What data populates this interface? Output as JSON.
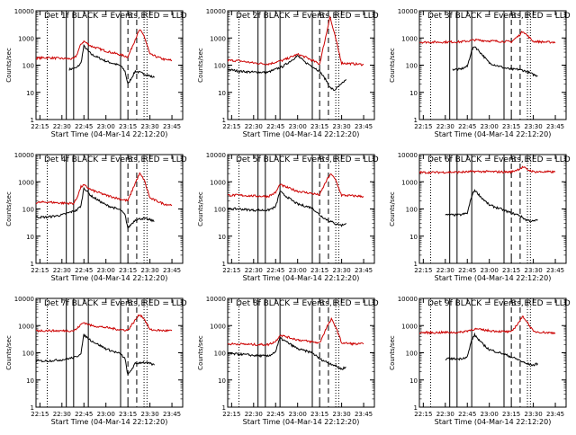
{
  "figure": {
    "panel_title_suffix": "BLACK = Events, RED = LLD",
    "xlabel": "Start Time (04-Mar-14 22:12:20)",
    "ylabel": "Counts/sec",
    "time_ticks": [
      "22:15",
      "22:30",
      "22:45",
      "23:00",
      "23:15",
      "23:30",
      "23:45"
    ],
    "count_ticks": [
      "1",
      "10",
      "100",
      "1000",
      "10000"
    ],
    "marker_labels": [
      "S",
      "E"
    ],
    "colors": {
      "events": "#000000",
      "lld": "#cc0000",
      "axes": "#000000",
      "background": "#ffffff"
    }
  },
  "chart_data": [
    {
      "title": "Det 1f",
      "type": "line",
      "ylim": [
        1,
        10000
      ],
      "y_scale": "log",
      "series": [
        {
          "name": "BLACK = Events",
          "x": [
            "22:35",
            "22:40",
            "22:43",
            "22:45",
            "22:50",
            "23:00",
            "23:10",
            "23:13",
            "23:15",
            "23:20",
            "23:25",
            "23:30",
            "23:33"
          ],
          "y": [
            70,
            80,
            120,
            500,
            250,
            140,
            95,
            60,
            20,
            60,
            50,
            40,
            35
          ]
        },
        {
          "name": "RED = LLD",
          "x": [
            "22:12",
            "22:20",
            "22:30",
            "22:38",
            "22:40",
            "22:43",
            "22:45",
            "22:50",
            "23:00",
            "23:10",
            "23:15",
            "23:20",
            "23:23",
            "23:26",
            "23:30",
            "23:40",
            "23:45"
          ],
          "y": [
            180,
            190,
            175,
            170,
            230,
            600,
            750,
            500,
            330,
            240,
            200,
            900,
            2000,
            1200,
            250,
            160,
            150
          ]
        }
      ]
    },
    {
      "title": "Det 2f",
      "type": "line",
      "ylim": [
        1,
        10000
      ],
      "y_scale": "log",
      "series": [
        {
          "name": "BLACK = Events",
          "x": [
            "22:12",
            "22:20",
            "22:30",
            "22:40",
            "22:50",
            "23:00",
            "23:05",
            "23:10",
            "23:15",
            "23:20",
            "23:22",
            "23:25",
            "23:30",
            "23:33"
          ],
          "y": [
            70,
            60,
            55,
            55,
            90,
            220,
            130,
            90,
            60,
            25,
            15,
            12,
            20,
            30
          ]
        },
        {
          "name": "RED = LLD",
          "x": [
            "22:12",
            "22:20",
            "22:30",
            "22:40",
            "22:50",
            "23:00",
            "23:05",
            "23:10",
            "23:15",
            "23:20",
            "23:22",
            "23:25",
            "23:30",
            "23:40",
            "23:45"
          ],
          "y": [
            150,
            145,
            120,
            110,
            150,
            250,
            200,
            150,
            110,
            1800,
            6000,
            1500,
            120,
            110,
            105
          ]
        }
      ]
    },
    {
      "title": "Det 3f",
      "type": "line",
      "ylim": [
        1,
        10000
      ],
      "y_scale": "log",
      "series": [
        {
          "name": "BLACK = Events",
          "x": [
            "22:35",
            "22:40",
            "22:45",
            "22:48",
            "22:50",
            "22:55",
            "23:00",
            "23:10",
            "23:15",
            "23:20",
            "23:25",
            "23:30",
            "23:33"
          ],
          "y": [
            70,
            70,
            90,
            350,
            500,
            250,
            120,
            80,
            70,
            70,
            60,
            45,
            40
          ]
        },
        {
          "name": "RED = LLD",
          "x": [
            "22:12",
            "22:20",
            "22:30",
            "22:40",
            "22:48",
            "22:50",
            "23:00",
            "23:10",
            "23:15",
            "23:20",
            "23:23",
            "23:26",
            "23:30",
            "23:40",
            "23:45"
          ],
          "y": [
            700,
            700,
            710,
            720,
            800,
            850,
            780,
            740,
            730,
            1200,
            1800,
            1200,
            750,
            700,
            700
          ]
        }
      ]
    },
    {
      "title": "Det 4f",
      "type": "line",
      "ylim": [
        1,
        10000
      ],
      "y_scale": "log",
      "series": [
        {
          "name": "BLACK = Events",
          "x": [
            "22:12",
            "22:20",
            "22:30",
            "22:40",
            "22:43",
            "22:45",
            "22:50",
            "23:00",
            "23:10",
            "23:13",
            "23:15",
            "23:20",
            "23:25",
            "23:30",
            "23:33"
          ],
          "y": [
            50,
            50,
            60,
            90,
            130,
            600,
            300,
            140,
            90,
            60,
            20,
            40,
            45,
            40,
            35
          ]
        },
        {
          "name": "RED = LLD",
          "x": [
            "22:12",
            "22:20",
            "22:30",
            "22:38",
            "22:40",
            "22:43",
            "22:45",
            "22:50",
            "23:00",
            "23:10",
            "23:15",
            "23:20",
            "23:23",
            "23:26",
            "23:30",
            "23:40",
            "23:45"
          ],
          "y": [
            170,
            180,
            165,
            160,
            240,
            650,
            750,
            500,
            320,
            230,
            200,
            900,
            2000,
            1200,
            250,
            150,
            140
          ]
        }
      ]
    },
    {
      "title": "Det 5f",
      "type": "line",
      "ylim": [
        1,
        10000
      ],
      "y_scale": "log",
      "series": [
        {
          "name": "BLACK = Events",
          "x": [
            "22:12",
            "22:20",
            "22:30",
            "22:40",
            "22:45",
            "22:48",
            "22:50",
            "23:00",
            "23:10",
            "23:15",
            "23:20",
            "23:25",
            "23:30",
            "23:33"
          ],
          "y": [
            100,
            100,
            90,
            90,
            120,
            450,
            350,
            150,
            110,
            60,
            40,
            30,
            25,
            30
          ]
        },
        {
          "name": "RED = LLD",
          "x": [
            "22:12",
            "22:20",
            "22:30",
            "22:40",
            "22:45",
            "22:48",
            "22:50",
            "23:00",
            "23:10",
            "23:15",
            "23:20",
            "23:23",
            "23:26",
            "23:30",
            "23:40",
            "23:45"
          ],
          "y": [
            320,
            320,
            300,
            290,
            400,
            800,
            700,
            450,
            370,
            330,
            1200,
            2000,
            1100,
            320,
            300,
            290
          ]
        }
      ]
    },
    {
      "title": "Det 6f",
      "type": "line",
      "ylim": [
        1,
        10000
      ],
      "y_scale": "log",
      "series": [
        {
          "name": "BLACK = Events",
          "x": [
            "22:30",
            "22:40",
            "22:45",
            "22:48",
            "22:50",
            "22:55",
            "23:00",
            "23:10",
            "23:15",
            "23:20",
            "23:25",
            "23:30",
            "23:33"
          ],
          "y": [
            60,
            60,
            70,
            300,
            500,
            250,
            140,
            90,
            70,
            60,
            40,
            35,
            40
          ]
        },
        {
          "name": "RED = LLD",
          "x": [
            "22:12",
            "22:20",
            "22:30",
            "22:40",
            "22:48",
            "22:50",
            "23:00",
            "23:10",
            "23:15",
            "23:20",
            "23:23",
            "23:26",
            "23:30",
            "23:40",
            "23:45"
          ],
          "y": [
            2200,
            2200,
            2250,
            2250,
            2350,
            2400,
            2350,
            2300,
            2300,
            2900,
            3500,
            2800,
            2350,
            2300,
            2300
          ]
        }
      ]
    },
    {
      "title": "Det 7f",
      "type": "line",
      "ylim": [
        1,
        10000
      ],
      "y_scale": "log",
      "series": [
        {
          "name": "BLACK = Events",
          "x": [
            "22:12",
            "22:20",
            "22:30",
            "22:40",
            "22:43",
            "22:45",
            "22:50",
            "23:00",
            "23:10",
            "23:13",
            "23:15",
            "23:20",
            "23:25",
            "23:30",
            "23:33"
          ],
          "y": [
            50,
            50,
            55,
            70,
            100,
            450,
            280,
            140,
            90,
            60,
            15,
            40,
            45,
            40,
            35
          ]
        },
        {
          "name": "RED = LLD",
          "x": [
            "22:12",
            "22:20",
            "22:30",
            "22:38",
            "22:40",
            "22:43",
            "22:45",
            "22:50",
            "23:00",
            "23:10",
            "23:15",
            "23:20",
            "23:23",
            "23:26",
            "23:30",
            "23:40",
            "23:45"
          ],
          "y": [
            650,
            650,
            640,
            650,
            750,
            1100,
            1300,
            1000,
            850,
            700,
            680,
            1600,
            2600,
            1800,
            700,
            650,
            650
          ]
        }
      ]
    },
    {
      "title": "Det 8f",
      "type": "line",
      "ylim": [
        1,
        10000
      ],
      "y_scale": "log",
      "series": [
        {
          "name": "BLACK = Events",
          "x": [
            "22:12",
            "22:20",
            "22:30",
            "22:40",
            "22:45",
            "22:48",
            "22:50",
            "23:00",
            "23:10",
            "23:15",
            "23:20",
            "23:25",
            "23:30",
            "23:33"
          ],
          "y": [
            90,
            90,
            80,
            75,
            110,
            350,
            300,
            140,
            100,
            60,
            45,
            35,
            25,
            30
          ]
        },
        {
          "name": "RED = LLD",
          "x": [
            "22:12",
            "22:20",
            "22:30",
            "22:40",
            "22:45",
            "22:48",
            "22:50",
            "23:00",
            "23:10",
            "23:15",
            "23:20",
            "23:23",
            "23:26",
            "23:30",
            "23:40",
            "23:45"
          ],
          "y": [
            210,
            210,
            200,
            200,
            260,
            450,
            420,
            300,
            250,
            230,
            900,
            1700,
            900,
            230,
            210,
            210
          ]
        }
      ]
    },
    {
      "title": "Det 9f",
      "type": "line",
      "ylim": [
        1,
        10000
      ],
      "y_scale": "log",
      "series": [
        {
          "name": "BLACK = Events",
          "x": [
            "22:30",
            "22:40",
            "22:45",
            "22:48",
            "22:50",
            "22:55",
            "23:00",
            "23:10",
            "23:15",
            "23:20",
            "23:25",
            "23:30",
            "23:33"
          ],
          "y": [
            60,
            60,
            70,
            300,
            450,
            220,
            130,
            90,
            70,
            55,
            40,
            35,
            40
          ]
        },
        {
          "name": "RED = LLD",
          "x": [
            "22:12",
            "22:20",
            "22:30",
            "22:40",
            "22:48",
            "22:50",
            "23:00",
            "23:10",
            "23:15",
            "23:20",
            "23:23",
            "23:26",
            "23:30",
            "23:40",
            "23:45"
          ],
          "y": [
            550,
            550,
            560,
            560,
            700,
            750,
            650,
            600,
            580,
            1300,
            2200,
            1300,
            600,
            550,
            540
          ]
        }
      ]
    }
  ]
}
